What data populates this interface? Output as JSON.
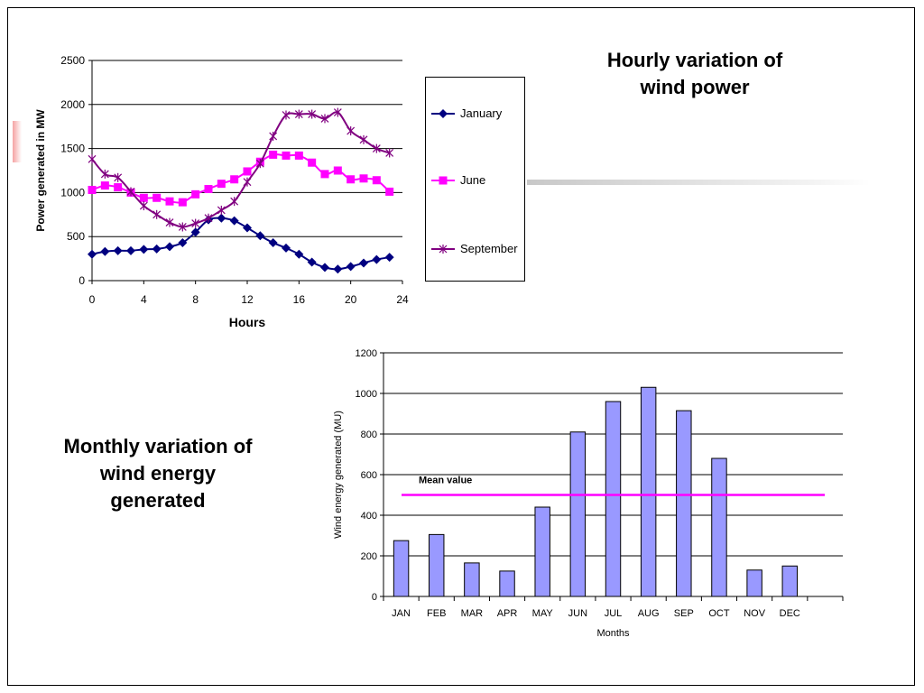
{
  "headings": {
    "hourly": [
      "Hourly variation of",
      "wind power"
    ],
    "monthly": [
      "Monthly variation of",
      "wind energy",
      "generated"
    ]
  },
  "chart_data": [
    {
      "type": "line",
      "xlabel": "Hours",
      "ylabel": "Power generated in MW",
      "xlim": [
        0,
        24
      ],
      "ylim": [
        0,
        2500
      ],
      "xticks": [
        0,
        4,
        8,
        12,
        16,
        20,
        24
      ],
      "yticks": [
        0,
        500,
        1000,
        1500,
        2000,
        2500
      ],
      "grid": "horizontal",
      "legend_position": "right",
      "x": [
        0,
        1,
        2,
        3,
        4,
        5,
        6,
        7,
        8,
        9,
        10,
        11,
        12,
        13,
        14,
        15,
        16,
        17,
        18,
        19,
        20,
        21,
        22,
        23
      ],
      "series": [
        {
          "name": "January",
          "color": "#000080",
          "marker": "diamond",
          "values": [
            300,
            330,
            340,
            340,
            355,
            360,
            385,
            430,
            550,
            690,
            710,
            680,
            600,
            510,
            430,
            370,
            300,
            210,
            150,
            130,
            160,
            200,
            240,
            265
          ]
        },
        {
          "name": "June",
          "color": "#ff00ff",
          "marker": "square",
          "values": [
            1030,
            1080,
            1060,
            1000,
            940,
            940,
            900,
            890,
            980,
            1040,
            1100,
            1150,
            1240,
            1350,
            1430,
            1420,
            1420,
            1340,
            1210,
            1250,
            1150,
            1160,
            1140,
            1010
          ]
        },
        {
          "name": "September",
          "color": "#800080",
          "marker": "star",
          "values": [
            1380,
            1210,
            1170,
            1010,
            850,
            750,
            660,
            610,
            650,
            710,
            800,
            900,
            1120,
            1330,
            1640,
            1880,
            1890,
            1890,
            1840,
            1910,
            1700,
            1600,
            1500,
            1450
          ]
        }
      ]
    },
    {
      "type": "bar",
      "xlabel": "Months",
      "ylabel": "Wind energy generated (MU)",
      "ylim": [
        0,
        1200
      ],
      "yticks": [
        0,
        200,
        400,
        600,
        800,
        1000,
        1200
      ],
      "grid": "horizontal",
      "categories": [
        "JAN",
        "FEB",
        "MAR",
        "APR",
        "MAY",
        "JUN",
        "JUL",
        "AUG",
        "SEP",
        "OCT",
        "NOV",
        "DEC"
      ],
      "values": [
        275,
        305,
        165,
        125,
        440,
        810,
        960,
        1030,
        915,
        680,
        130,
        150
      ],
      "bar_color": "#9999ff",
      "reference_line": {
        "label": "Mean value",
        "value": 500,
        "color": "#ff00ff"
      }
    }
  ]
}
